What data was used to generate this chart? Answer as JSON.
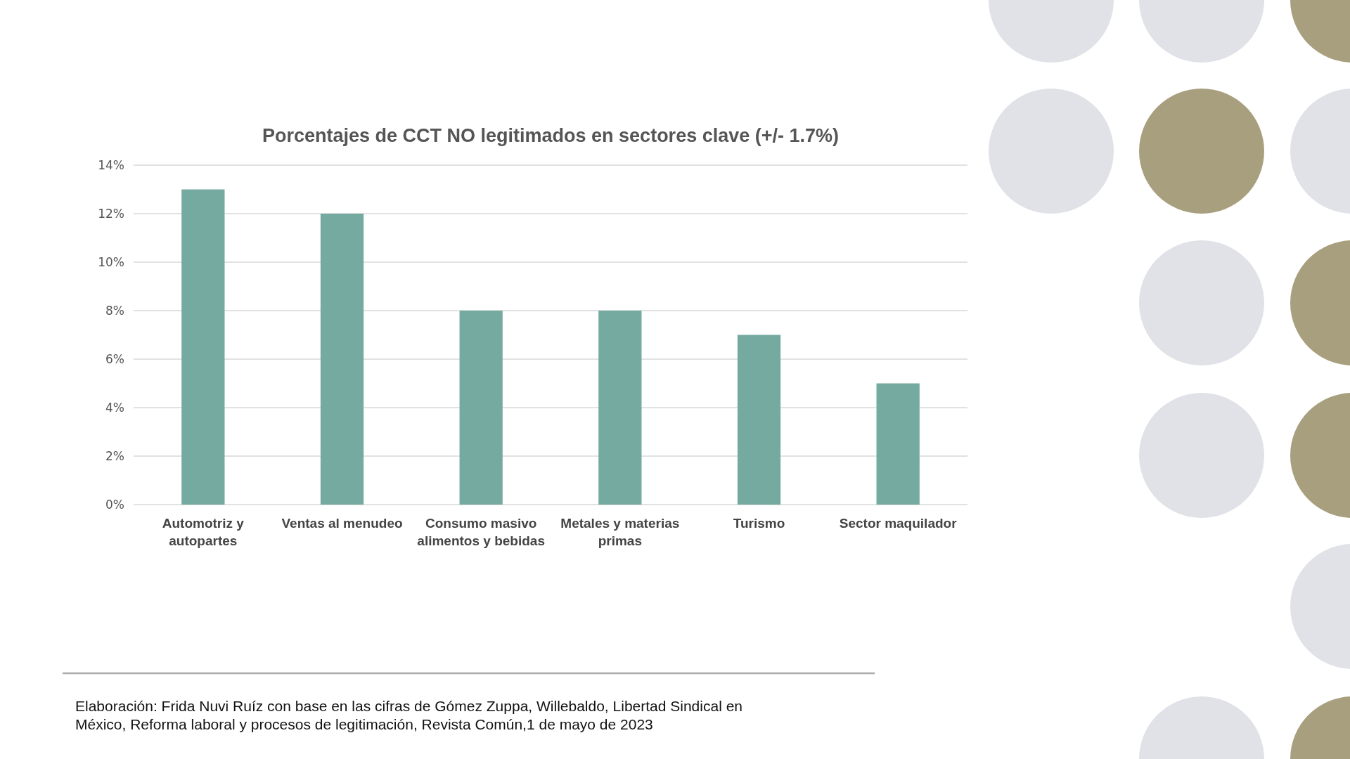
{
  "chart_data": {
    "type": "bar",
    "title": "Porcentajes de CCT NO legitimados en sectores clave (+/- 1.7%)",
    "categories": [
      "Automotriz y autopartes",
      "Ventas al menudeo",
      "Consumo masivo alimentos y bebidas",
      "Metales y materias primas",
      "Turismo",
      "Sector maquilador"
    ],
    "values": [
      13,
      12,
      8,
      8,
      7,
      5
    ],
    "color": "#75aaa0",
    "ylim": [
      0,
      14
    ],
    "yticks": [
      {
        "value": 0,
        "label": "0%"
      },
      {
        "value": 2,
        "label": "2%"
      },
      {
        "value": 4,
        "label": "4%"
      },
      {
        "value": 6,
        "label": "6%"
      },
      {
        "value": 8,
        "label": "8%"
      },
      {
        "value": 10,
        "label": "10%"
      },
      {
        "value": 12,
        "label": "12%"
      },
      {
        "value": 14,
        "label": "14%"
      }
    ],
    "grid": "y",
    "annotations": [
      "Elaboración: Frida Nuvi Ruíz con base en las cifras de Gómez Zuppa, Willebaldo, Libertad Sindical en México, Reforma laboral y procesos de legitimación, Revista Común,1 de mayo de 2023"
    ]
  }
}
